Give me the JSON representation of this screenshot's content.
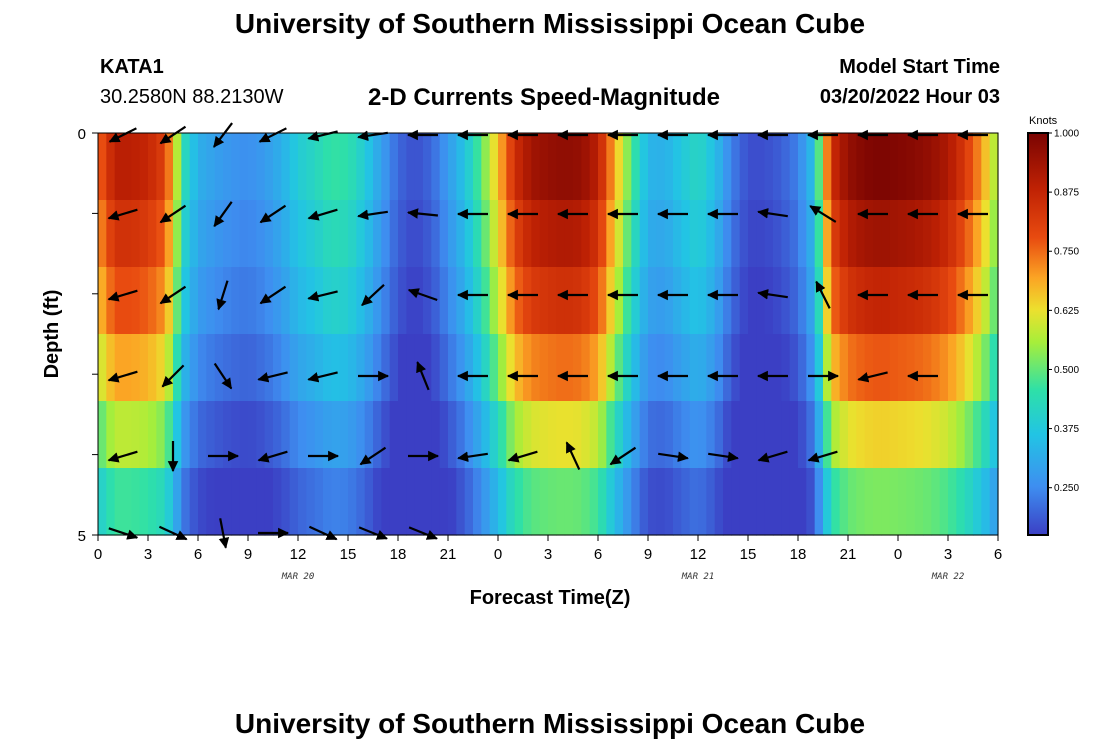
{
  "header": {
    "title": "University of Southern Mississippi Ocean Cube",
    "station": "KATA1",
    "coords": "30.2580N  88.2130W",
    "subtitle": "2-D Currents Speed-Magnitude",
    "model_label": "Model Start Time",
    "model_time": "03/20/2022 Hour 03"
  },
  "footer": {
    "title": "University of Southern Mississippi Ocean Cube"
  },
  "chart_data": {
    "type": "heatmap",
    "title": "2-D Currents Speed-Magnitude",
    "xlabel": "Forecast Time(Z)",
    "ylabel": "Depth (ft)",
    "x_hours": [
      0,
      54
    ],
    "y_range": [
      0,
      5
    ],
    "y_ticks": [
      "0",
      "5"
    ],
    "x_tick_labels": [
      "0",
      "3",
      "6",
      "9",
      "12",
      "15",
      "18",
      "21",
      "0",
      "3",
      "6",
      "9",
      "12",
      "15",
      "18",
      "21",
      "0",
      "3",
      "6"
    ],
    "date_labels": [
      {
        "hour": 12,
        "label": "MAR 20"
      },
      {
        "hour": 36,
        "label": "MAR 21"
      },
      {
        "hour": 51,
        "label": "MAR 22"
      }
    ],
    "colorbar": {
      "unit": "Knots",
      "min": 0.15,
      "max": 1.0,
      "ticks": [
        "0.250",
        "0.375",
        "0.500",
        "0.625",
        "0.750",
        "0.875",
        "1.000"
      ],
      "tick_values": [
        0.25,
        0.375,
        0.5,
        0.625,
        0.75,
        0.875,
        1.0
      ]
    },
    "time_profile_knots": [
      [
        0,
        0.7
      ],
      [
        1,
        0.84
      ],
      [
        2,
        0.84
      ],
      [
        3,
        0.82
      ],
      [
        4,
        0.76
      ],
      [
        4.6,
        0.6
      ],
      [
        5,
        0.42
      ],
      [
        6,
        0.3
      ],
      [
        7,
        0.27
      ],
      [
        8,
        0.25
      ],
      [
        9,
        0.24
      ],
      [
        10,
        0.26
      ],
      [
        11,
        0.3
      ],
      [
        12,
        0.36
      ],
      [
        13,
        0.39
      ],
      [
        14,
        0.43
      ],
      [
        15,
        0.42
      ],
      [
        16,
        0.36
      ],
      [
        17,
        0.27
      ],
      [
        18,
        0.19
      ],
      [
        19,
        0.16
      ],
      [
        20,
        0.19
      ],
      [
        21,
        0.26
      ],
      [
        22,
        0.34
      ],
      [
        23,
        0.46
      ],
      [
        24,
        0.62
      ],
      [
        25,
        0.8
      ],
      [
        26,
        0.88
      ],
      [
        27,
        0.9
      ],
      [
        28,
        0.91
      ],
      [
        29,
        0.9
      ],
      [
        30,
        0.84
      ],
      [
        31,
        0.64
      ],
      [
        32,
        0.45
      ],
      [
        33,
        0.31
      ],
      [
        34,
        0.3
      ],
      [
        35,
        0.35
      ],
      [
        36,
        0.39
      ],
      [
        37,
        0.33
      ],
      [
        38,
        0.22
      ],
      [
        39,
        0.16
      ],
      [
        40,
        0.16
      ],
      [
        41,
        0.18
      ],
      [
        42,
        0.22
      ],
      [
        43,
        0.34
      ],
      [
        44,
        0.8
      ],
      [
        45,
        0.9
      ],
      [
        46,
        0.93
      ],
      [
        47,
        0.94
      ],
      [
        48,
        0.93
      ],
      [
        49,
        0.92
      ],
      [
        50,
        0.9
      ],
      [
        51,
        0.86
      ],
      [
        52,
        0.78
      ],
      [
        53,
        0.66
      ],
      [
        54,
        0.5
      ]
    ],
    "depth_factors": [
      1.06,
      1.0,
      0.93,
      0.82,
      0.68,
      0.55
    ],
    "vectors": [
      {
        "row": 0,
        "dirs": [
          [
            -2,
            1
          ],
          [
            -1.5,
            1
          ],
          [
            -1,
            1.3
          ],
          [
            -2,
            1
          ],
          [
            -2,
            0.5
          ],
          [
            -2,
            0.3
          ],
          [
            -2,
            0
          ],
          [
            -2,
            0
          ],
          [
            -2,
            0
          ],
          [
            -2,
            0
          ],
          [
            -2,
            0
          ],
          [
            -2,
            0
          ],
          [
            -2,
            0
          ],
          [
            -2,
            0
          ],
          [
            -2,
            0
          ],
          [
            -2,
            0
          ],
          [
            -2,
            0
          ],
          [
            -2,
            0
          ]
        ]
      },
      {
        "row": 1,
        "dirs": [
          [
            -2,
            0.6
          ],
          [
            -1.5,
            1
          ],
          [
            -1,
            1.4
          ],
          [
            -1.5,
            1
          ],
          [
            -2,
            0.6
          ],
          [
            -2,
            0.3
          ],
          [
            -2,
            -0.2
          ],
          [
            -2,
            0
          ],
          [
            -2,
            0
          ],
          [
            -2,
            0
          ],
          [
            -2,
            0
          ],
          [
            -2,
            0
          ],
          [
            -2,
            0
          ],
          [
            -2,
            -0.3
          ],
          [
            -1.3,
            -0.8
          ],
          [
            -2,
            0
          ],
          [
            -2,
            0
          ],
          [
            -2,
            0
          ]
        ]
      },
      {
        "row": 2,
        "dirs": [
          [
            -2,
            0.6
          ],
          [
            -1.5,
            1
          ],
          [
            -0.5,
            1.6
          ],
          [
            -1.5,
            1
          ],
          [
            -2,
            0.5
          ],
          [
            -1.3,
            1.2
          ],
          [
            -2,
            -0.7
          ],
          [
            -2,
            0
          ],
          [
            -2,
            0
          ],
          [
            -2,
            0
          ],
          [
            -2,
            0
          ],
          [
            -2,
            0
          ],
          [
            -2,
            0
          ],
          [
            -2,
            -0.3
          ],
          [
            -0.7,
            -1.4
          ],
          [
            -2,
            0
          ],
          [
            -2,
            0
          ],
          [
            -2,
            0
          ]
        ]
      },
      {
        "row": 3,
        "dirs": [
          [
            -2,
            0.6
          ],
          [
            -1.2,
            1.2
          ],
          [
            1,
            1.5
          ],
          [
            -2,
            0.5
          ],
          [
            -2,
            0.5
          ],
          [
            2,
            0
          ],
          [
            -0.6,
            -1.5
          ],
          [
            -2,
            0
          ],
          [
            -2,
            0
          ],
          [
            -2,
            0
          ],
          [
            -2,
            0
          ],
          [
            -2,
            0
          ],
          [
            -2,
            0
          ],
          [
            -2,
            0
          ],
          [
            2,
            0
          ],
          [
            -2,
            0.5
          ],
          [
            -2,
            0
          ]
        ]
      },
      {
        "row": 4,
        "dirs": [
          [
            -2,
            0.6
          ],
          [
            0,
            1.8
          ],
          [
            2,
            0
          ],
          [
            -2,
            0.6
          ],
          [
            2,
            0
          ],
          [
            -1.5,
            1
          ],
          [
            2,
            0
          ],
          [
            -2,
            0.3
          ],
          [
            -2,
            0.6
          ],
          [
            -0.7,
            -1.5
          ],
          [
            -1.5,
            1
          ],
          [
            2,
            0.3
          ],
          [
            2,
            0.3
          ],
          [
            -2,
            0.6
          ],
          [
            -2,
            0.6
          ]
        ]
      },
      {
        "row": 5,
        "dirs": [
          [
            1.5,
            0.5
          ],
          [
            1.5,
            0.7
          ],
          [
            0.3,
            1.6
          ],
          [
            2,
            0
          ],
          [
            1.5,
            0.7
          ],
          [
            1.5,
            0.6
          ],
          [
            1.5,
            0.6
          ]
        ]
      }
    ]
  }
}
